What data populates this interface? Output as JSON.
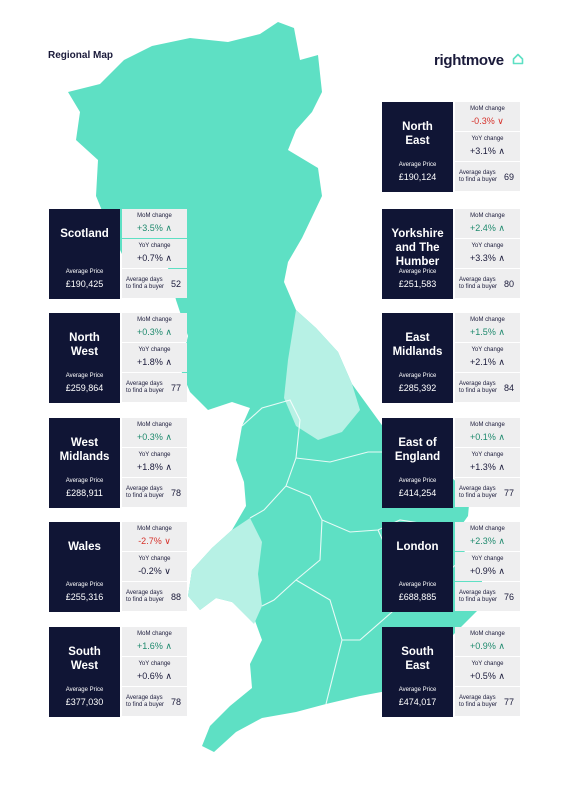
{
  "page": {
    "title": "Regional Map",
    "logo_text": "rightmove"
  },
  "colors": {
    "dark_navy": "#101535",
    "map_green": "#5ee0c4",
    "map_light": "#b7f1e5",
    "up_green": "#1f8a6e",
    "down_red": "#d6322b",
    "stat_bg": "#eeeeef"
  },
  "labels": {
    "mom": "MoM change",
    "yoy": "YoY change",
    "avg_price": "Average Price",
    "days_line1": "Average days",
    "days_line2": "to find a buyer"
  },
  "regions": [
    {
      "key": "north-east",
      "name": "North East",
      "name_lines": [
        "North",
        "East"
      ],
      "avg_price": "£190,124",
      "mom": "-0.3%",
      "mom_dir": "down",
      "yoy": "+3.1%",
      "yoy_dir": "up",
      "days": "69"
    },
    {
      "key": "scotland",
      "name": "Scotland",
      "name_lines": [
        "Scotland"
      ],
      "avg_price": "£190,425",
      "mom": "+3.5%",
      "mom_dir": "up",
      "yoy": "+0.7%",
      "yoy_dir": "up",
      "days": "52"
    },
    {
      "key": "yorkshire",
      "name": "Yorkshire and The Humber",
      "name_lines": [
        "Yorkshire",
        "and The",
        "Humber"
      ],
      "avg_price": "£251,583",
      "mom": "+2.4%",
      "mom_dir": "up",
      "yoy": "+3.3%",
      "yoy_dir": "up",
      "days": "80"
    },
    {
      "key": "north-west",
      "name": "North West",
      "name_lines": [
        "North",
        "West"
      ],
      "avg_price": "£259,864",
      "mom": "+0.3%",
      "mom_dir": "up",
      "yoy": "+1.8%",
      "yoy_dir": "up",
      "days": "77"
    },
    {
      "key": "east-midlands",
      "name": "East Midlands",
      "name_lines": [
        "East",
        "Midlands"
      ],
      "avg_price": "£285,392",
      "mom": "+1.5%",
      "mom_dir": "up",
      "yoy": "+2.1%",
      "yoy_dir": "up",
      "days": "84"
    },
    {
      "key": "west-midlands",
      "name": "West Midlands",
      "name_lines": [
        "West",
        "Midlands"
      ],
      "avg_price": "£288,911",
      "mom": "+0.3%",
      "mom_dir": "up",
      "yoy": "+1.8%",
      "yoy_dir": "up",
      "days": "78"
    },
    {
      "key": "east-of-england",
      "name": "East of England",
      "name_lines": [
        "East of",
        "England"
      ],
      "avg_price": "£414,254",
      "mom": "+0.1%",
      "mom_dir": "up",
      "yoy": "+1.3%",
      "yoy_dir": "up",
      "days": "77"
    },
    {
      "key": "wales",
      "name": "Wales",
      "name_lines": [
        "Wales"
      ],
      "avg_price": "£255,316",
      "mom": "-2.7%",
      "mom_dir": "down",
      "yoy": "-0.2%",
      "yoy_dir": "down",
      "days": "88"
    },
    {
      "key": "london",
      "name": "London",
      "name_lines": [
        "London"
      ],
      "avg_price": "£688,885",
      "mom": "+2.3%",
      "mom_dir": "up",
      "yoy": "+0.9%",
      "yoy_dir": "up",
      "days": "76"
    },
    {
      "key": "south-west",
      "name": "South West",
      "name_lines": [
        "South",
        "West"
      ],
      "avg_price": "£377,030",
      "mom": "+1.6%",
      "mom_dir": "up",
      "yoy": "+0.6%",
      "yoy_dir": "up",
      "days": "78"
    },
    {
      "key": "south-east",
      "name": "South East",
      "name_lines": [
        "South",
        "East"
      ],
      "avg_price": "£474,017",
      "mom": "+0.9%",
      "mom_dir": "up",
      "yoy": "+0.5%",
      "yoy_dir": "up",
      "days": "77"
    }
  ]
}
